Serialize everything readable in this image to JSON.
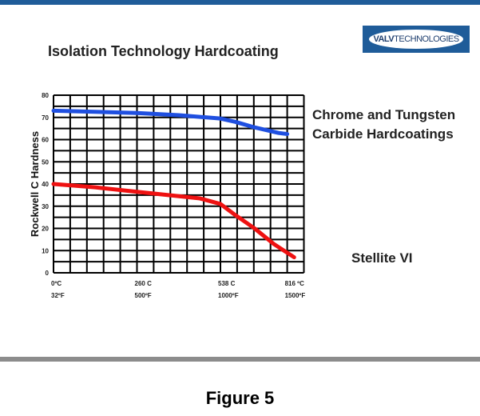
{
  "title": "Isolation Technology Hardcoating",
  "logo": "VALVTECHNOLOGIES",
  "caption": "Figure 5",
  "chart_data": {
    "type": "line",
    "xlabel": "",
    "ylabel": "Rockwell C Hardness",
    "ylim": [
      0,
      80
    ],
    "yticks": [
      0,
      10,
      20,
      30,
      40,
      50,
      60,
      70,
      80
    ],
    "xticks": [
      {
        "c": "0ºC",
        "f": "32ºF",
        "value": 0
      },
      {
        "c": "260 C",
        "f": "500ºF",
        "value": 260
      },
      {
        "c": "538 C",
        "f": "1000ºF",
        "value": 538
      },
      {
        "c": "816 ºC",
        "f": "1500ºF",
        "value": 816
      }
    ],
    "grid": true,
    "series": [
      {
        "name": "Chrome and Tungsten Carbide Hardcoatings",
        "name_lines": [
          "Chrome and Tungsten",
          "Carbide Hardcoatings"
        ],
        "color": "#1f4fe0",
        "x": [
          0,
          260,
          400,
          538,
          600,
          680,
          780,
          816
        ],
        "y": [
          73,
          72,
          71,
          69.5,
          68,
          65.5,
          63,
          62.5
        ]
      },
      {
        "name": "Stellite VI",
        "name_lines": [
          "Stellite VI"
        ],
        "color": "#ee1111",
        "x": [
          0,
          130,
          260,
          400,
          470,
          538,
          600,
          680,
          760,
          840
        ],
        "y": [
          40,
          38.5,
          36.5,
          34.5,
          33.5,
          31,
          26,
          20,
          13,
          7
        ]
      }
    ]
  }
}
